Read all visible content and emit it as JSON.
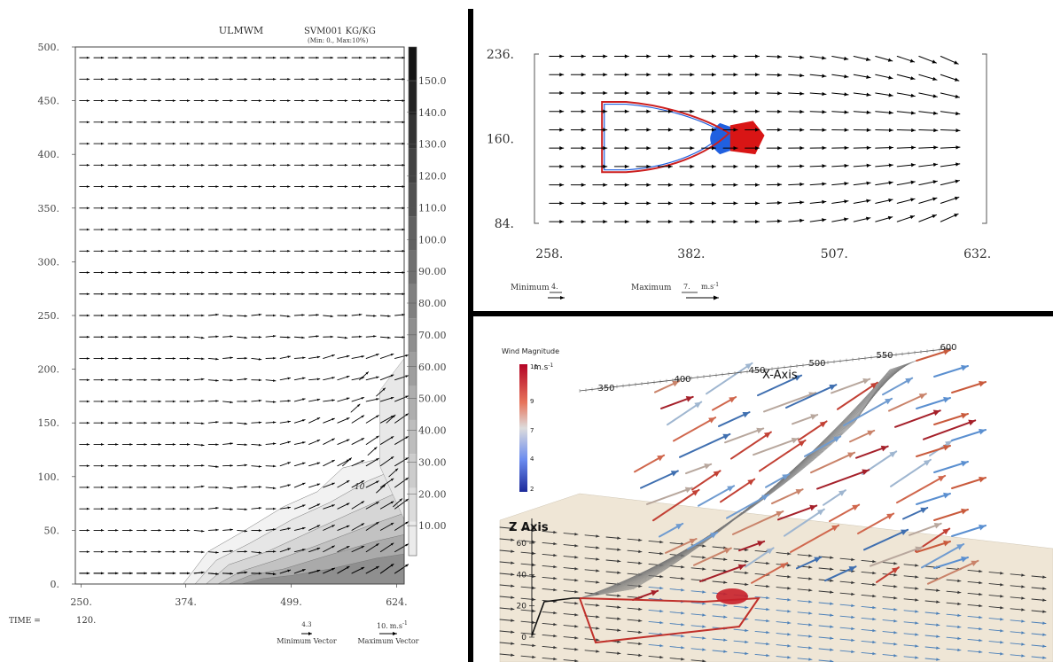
{
  "chart_data": [
    {
      "type": "vector-field",
      "panel": "left",
      "title": "ULMWM",
      "field_label": "SVM001 KG/KG",
      "field_range_note": "(Min: 0., Max:10%)",
      "x_ticks": [
        "250.",
        "374.",
        "499.",
        "624."
      ],
      "x_tick_values": [
        250,
        374,
        499,
        624
      ],
      "xlim": [
        243,
        633
      ],
      "y_ticks": [
        "0.",
        "50.",
        "100.",
        "150.",
        "200.",
        "250.",
        "300.",
        "350.",
        "400.",
        "450.",
        "500."
      ],
      "y_tick_values": [
        0,
        50,
        100,
        150,
        200,
        250,
        300,
        350,
        400,
        450,
        500
      ],
      "ylim": [
        0,
        500
      ],
      "colorbar_labels": [
        "10.00",
        "20.00",
        "30.00",
        "40.00",
        "50.00",
        "60.00",
        "70.00",
        "80.00",
        "90.00",
        "100.0",
        "110.0",
        "120.0",
        "130.0",
        "140.0",
        "150.0"
      ],
      "colorbar_values": [
        10,
        20,
        30,
        40,
        50,
        60,
        70,
        80,
        90,
        100,
        110,
        120,
        130,
        140,
        150
      ],
      "contour_label": "10",
      "time_label": "TIME =",
      "time_value": "120.",
      "legend": {
        "min_value": "4.3",
        "min_caption": "Minimum Vector",
        "max_value": "10.",
        "max_unit": "m.s",
        "unit_exp": "-1",
        "max_caption": "Maximum Vector"
      }
    },
    {
      "type": "vector-field",
      "panel": "top-right",
      "x_ticks": [
        "258.",
        "382.",
        "507.",
        "632."
      ],
      "x_tick_values": [
        258,
        382,
        507,
        632
      ],
      "xlim": [
        245,
        640
      ],
      "y_ticks": [
        "236.",
        "160.",
        "84."
      ],
      "y_tick_values": [
        236,
        160,
        84
      ],
      "ylim": [
        84,
        236
      ],
      "legend": {
        "min_caption": "Minimum",
        "min_value": "4.",
        "max_caption": "Maximum",
        "max_value": "7.",
        "unit": "m.s",
        "unit_exp": "-1"
      },
      "colors": {
        "contour_red": "#cc1f1f",
        "contour_blue": "#1f5fdd",
        "fill_red": "#d91515",
        "fill_blue": "#2060e0"
      }
    },
    {
      "type": "3d-vector-field",
      "panel": "bottom-right",
      "x_axis_title": "X-Axis",
      "x_axis_ticks": [
        "350",
        "400",
        "450",
        "500",
        "550",
        "600"
      ],
      "z_axis_title": "Z Axis",
      "z_axis_ticks": [
        "0",
        "20",
        "40",
        "60"
      ],
      "colorbar": {
        "title": "Wind Magnitude",
        "unit": "m.s",
        "unit_exp": "-1",
        "labels": [
          "11",
          "9",
          "7",
          "4",
          "2"
        ],
        "values": [
          11,
          9,
          7,
          4,
          2
        ],
        "colors": [
          "#b40426",
          "#e7745b",
          "#dddcdc",
          "#6a8bef",
          "#3b4cc0"
        ]
      }
    }
  ]
}
